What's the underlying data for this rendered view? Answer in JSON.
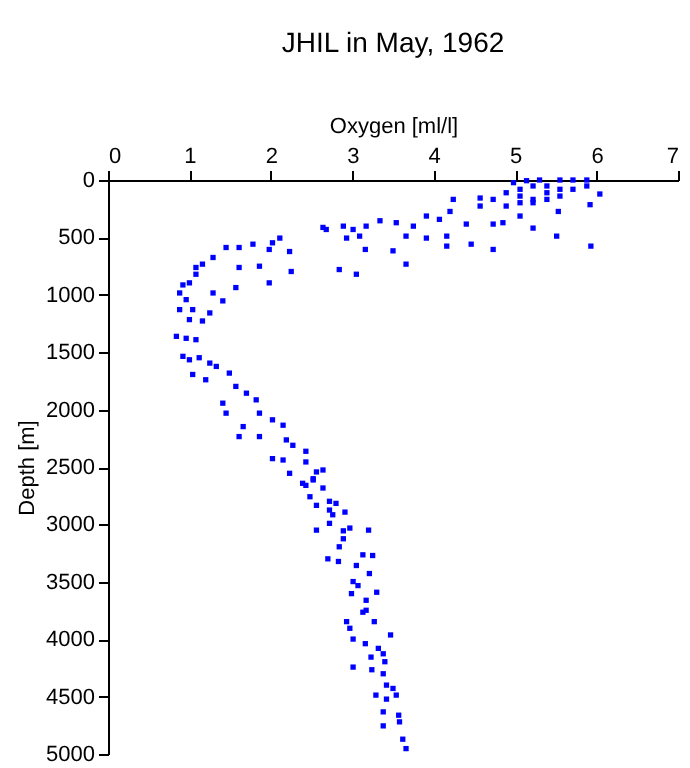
{
  "chart_data": {
    "type": "scatter",
    "title": "JHIL in May, 1962",
    "xlabel": "Oxygen [ml/l]",
    "ylabel": "Depth [m]",
    "xlim": [
      0,
      7
    ],
    "xticks": [
      0,
      1,
      2,
      3,
      4,
      5,
      6,
      7
    ],
    "ylim": [
      5000,
      0
    ],
    "yticks": [
      0,
      500,
      1000,
      1500,
      2000,
      2500,
      3000,
      3500,
      4000,
      4500,
      5000
    ],
    "grid": false,
    "marker": "square",
    "series": [
      {
        "color": "#0000ff",
        "x": [
          4.98,
          5.14,
          5.3,
          5.55,
          5.71,
          5.88,
          5.06,
          5.22,
          5.39,
          4.89,
          5.06,
          5.22,
          5.39,
          5.55,
          5.71,
          4.57,
          4.73,
          4.89,
          5.06,
          5.22,
          5.39,
          5.55,
          5.88,
          6.04,
          5.92,
          5.53,
          4.57,
          4.24,
          4.2,
          4.07,
          3.91,
          3.75,
          3.54,
          3.34,
          3.17,
          3.01,
          2.89,
          2.64,
          2.68,
          3.09,
          2.93,
          3.66,
          3.91,
          4.16,
          4.4,
          4.73,
          4.85,
          5.06,
          5.22,
          5.51,
          5.93,
          4.73,
          4.46,
          4.16,
          3.5,
          3.16,
          3.66,
          2.84,
          3.05,
          2.11,
          2.02,
          1.98,
          2.23,
          1.78,
          1.61,
          1.45,
          1.86,
          1.61,
          1.29,
          1.16,
          1.08,
          1.08,
          1.0,
          0.92,
          0.88,
          0.96,
          1.04,
          0.88,
          1.0,
          0.84,
          0.96,
          1.08,
          1.16,
          1.25,
          1.29,
          1.41,
          1.57,
          1.98,
          2.25,
          0.92,
          1.0,
          1.12,
          1.25,
          1.33,
          1.2,
          1.04,
          1.49,
          1.57,
          1.7,
          1.82,
          1.86,
          1.41,
          1.45,
          2.02,
          2.15,
          1.66,
          1.61,
          1.86,
          2.19,
          2.27,
          2.43,
          2.02,
          2.15,
          2.43,
          2.23,
          2.56,
          2.64,
          2.52,
          2.39,
          2.52,
          2.43,
          2.64,
          2.48,
          2.56,
          2.72,
          2.8,
          2.72,
          2.76,
          2.91,
          2.72,
          2.89,
          2.97,
          3.2,
          2.56,
          2.84,
          2.89,
          2.7,
          2.83,
          3.13,
          3.25,
          3.05,
          3.21,
          3.01,
          3.07,
          2.99,
          3.3,
          3.17,
          3.13,
          3.17,
          3.27,
          2.93,
          2.97,
          3.01,
          3.16,
          3.47,
          3.32,
          3.38,
          3.23,
          3.4,
          3.01,
          3.24,
          3.38,
          3.42,
          3.5,
          3.54,
          3.29,
          3.42,
          3.38,
          3.57,
          3.58,
          3.38,
          3.62,
          3.66
        ],
        "values": [
          23,
          6,
          0,
          0,
          0,
          0,
          81,
          52,
          52,
          111,
          140,
          169,
          111,
          81,
          81,
          157,
          169,
          227,
          198,
          198,
          169,
          140,
          52,
          122,
          215,
          274,
          227,
          169,
          274,
          343,
          314,
          402,
          372,
          355,
          402,
          431,
          402,
          413,
          431,
          489,
          506,
          489,
          506,
          489,
          384,
          384,
          372,
          314,
          419,
          489,
          576,
          605,
          559,
          576,
          617,
          605,
          733,
          780,
          821,
          506,
          547,
          605,
          623,
          559,
          588,
          588,
          751,
          762,
          675,
          733,
          762,
          821,
          896,
          914,
          984,
          1042,
          1129,
          1129,
          1216,
          1362,
          1379,
          1391,
          1228,
          1158,
          984,
          1053,
          937,
          896,
          797,
          1536,
          1566,
          1548,
          1595,
          1624,
          1740,
          1694,
          1682,
          1798,
          1857,
          1915,
          2031,
          1944,
          2031,
          2089,
          2136,
          2148,
          2235,
          2235,
          2264,
          2311,
          2363,
          2427,
          2439,
          2456,
          2555,
          2543,
          2526,
          2602,
          2642,
          2613,
          2660,
          2683,
          2759,
          2834,
          2799,
          2817,
          2875,
          2916,
          2893,
          2991,
          3056,
          3032,
          3050,
          3050,
          3195,
          3125,
          3300,
          3323,
          3265,
          3271,
          3358,
          3428,
          3498,
          3533,
          3603,
          3591,
          3661,
          3765,
          3748,
          3847,
          3847,
          3905,
          3999,
          4039,
          3963,
          4080,
          4127,
          4156,
          4196,
          4243,
          4266,
          4301,
          4400,
          4429,
          4487,
          4487,
          4522,
          4633,
          4662,
          4720,
          4755,
          4871,
          4953
        ]
      }
    ]
  }
}
